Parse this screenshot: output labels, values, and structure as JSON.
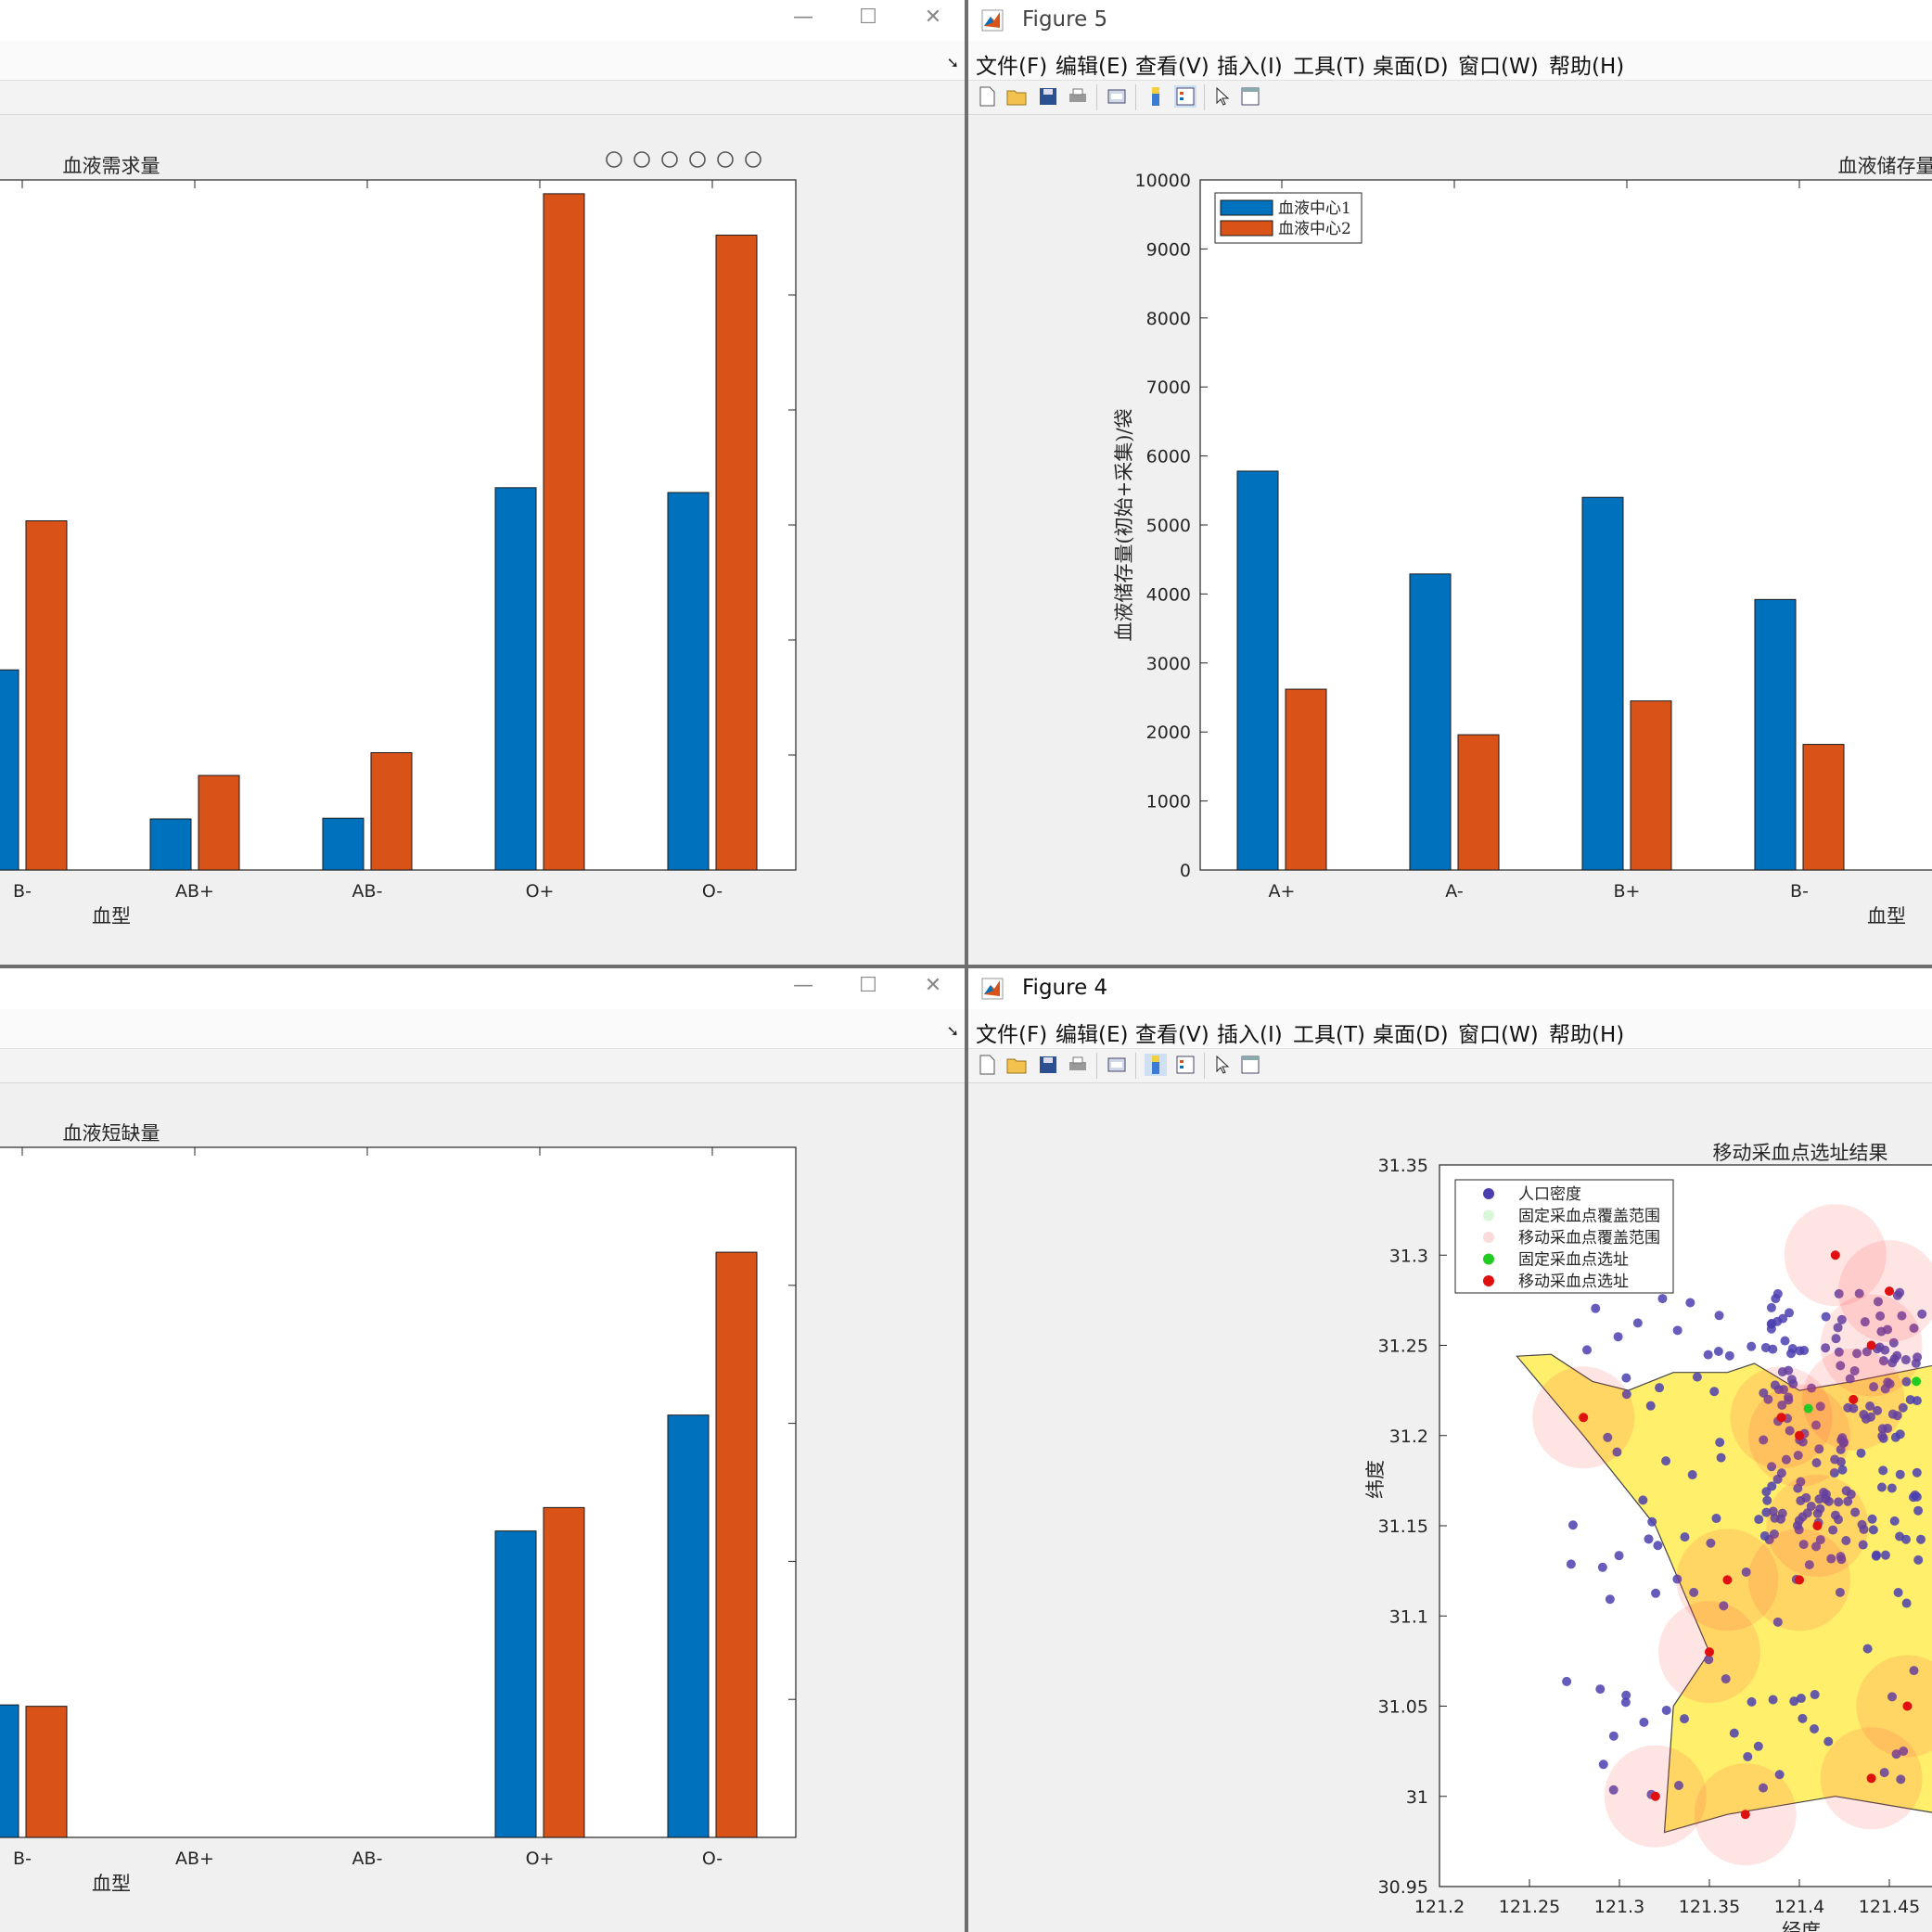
{
  "menu": [
    "文件(F)",
    "编辑(E)",
    "查看(V)",
    "插入(I)",
    "工具(T)",
    "桌面(D)",
    "窗口(W)",
    "帮助(H)"
  ],
  "icons": [
    "new-file-icon",
    "open-folder-icon",
    "save-icon",
    "print-icon",
    "link-icon",
    "colorbar-icon",
    "legend-icon",
    "pointer-icon",
    "property-inspector-icon"
  ],
  "axes_toolbar_icons": [
    "brush-icon",
    "data-tip-icon",
    "pan-icon",
    "zoom-in-icon",
    "zoom-out-icon",
    "home-icon"
  ],
  "colors": {
    "series1": "#0072bd",
    "series2": "#d95319",
    "population": "#4b3fb0",
    "fixed": "#22cc22",
    "mobile": "#e01010",
    "region": "#ffef6a"
  },
  "windows": {
    "top_left": {
      "chart_data": {
        "type": "bar",
        "title": "血液需求量",
        "xlabel": "血型",
        "categories": [
          "B-",
          "AB+",
          "AB-",
          "O+",
          "O-"
        ],
        "series": [
          {
            "values": [
              2900,
              740,
              750,
              5540,
              5470
            ]
          },
          {
            "values": [
              5060,
              1370,
              1700,
              9800,
              9200
            ]
          }
        ],
        "ylim": [
          0,
          10000
        ]
      }
    },
    "top_right": {
      "title": "Figure 5",
      "chart_data": {
        "type": "bar",
        "title": "血液储存量",
        "xlabel": "血型",
        "ylabel": "血液储存量(初始+采集)/袋",
        "categories": [
          "A+",
          "A-",
          "B+",
          "B-"
        ],
        "yticks": [
          0,
          1000,
          2000,
          3000,
          4000,
          5000,
          6000,
          7000,
          8000,
          9000,
          10000
        ],
        "ylim": [
          0,
          10000
        ],
        "legend": "top-left",
        "series": [
          {
            "name": "血液中心1",
            "values": [
              5780,
              4290,
              5400,
              3920
            ]
          },
          {
            "name": "血液中心2",
            "values": [
              2620,
              1960,
              2450,
              1820
            ]
          }
        ]
      }
    },
    "bottom_left": {
      "chart_data": {
        "type": "bar",
        "title": "血液短缺量",
        "xlabel": "血型",
        "categories": [
          "B-",
          "AB+",
          "AB-",
          "O+",
          "O-"
        ],
        "series": [
          {
            "values": [
              960,
              0,
              0,
              2220,
              3060
            ]
          },
          {
            "values": [
              950,
              0,
              0,
              2390,
              4240
            ]
          }
        ],
        "ylim": [
          0,
          5000
        ]
      }
    },
    "bottom_right": {
      "title": "Figure 4",
      "chart_data": {
        "type": "scatter",
        "title": "移动采血点选址结果",
        "xlabel": "经度",
        "ylabel": "纬度",
        "xticks": [
          "121.2",
          "121.25",
          "121.3",
          "121.35",
          "121.4",
          "121.45"
        ],
        "yticks": [
          "30.95",
          "31",
          "31.05",
          "31.1",
          "31.15",
          "31.2",
          "31.25",
          "31.3",
          "31.35"
        ],
        "xlim": [
          121.2,
          121.47
        ],
        "ylim": [
          30.95,
          31.35
        ],
        "legend": [
          "人口密度",
          "固定采血点覆盖范围",
          "移动采血点覆盖范围",
          "固定采血点选址",
          "移动采血点选址"
        ],
        "mobile_sites": [
          [
            121.39,
            31.21
          ],
          [
            121.4,
            31.2
          ],
          [
            121.43,
            31.22
          ],
          [
            121.44,
            31.25
          ],
          [
            121.45,
            31.28
          ],
          [
            121.42,
            31.3
          ],
          [
            121.36,
            31.12
          ],
          [
            121.32,
            31.0
          ],
          [
            121.37,
            30.99
          ],
          [
            121.4,
            31.12
          ],
          [
            121.44,
            31.01
          ],
          [
            121.35,
            31.08
          ],
          [
            121.46,
            31.05
          ],
          [
            121.28,
            31.21
          ],
          [
            121.41,
            31.15
          ]
        ],
        "fixed_sites": [
          [
            121.405,
            31.215
          ],
          [
            121.465,
            31.23
          ]
        ]
      }
    }
  }
}
